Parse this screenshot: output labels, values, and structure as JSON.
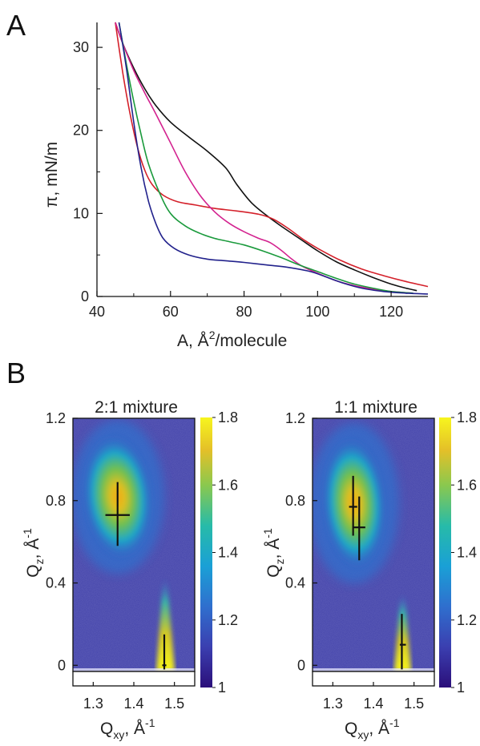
{
  "panels": {
    "a": "A",
    "b": "B"
  },
  "chart_data": [
    {
      "type": "line",
      "xlabel_main": "A, Å",
      "xlabel_sup": "2",
      "xlabel_tail": "/molecule",
      "ylabel": "π, mN/m",
      "xlim": [
        40,
        130
      ],
      "ylim": [
        0,
        33
      ],
      "xticks": [
        "40",
        "60",
        "80",
        "100",
        "120"
      ],
      "yticks": [
        "0",
        "10",
        "20",
        "30"
      ],
      "colors": [
        "#111111",
        "#d4202a",
        "#d3228f",
        "#1a9a3c",
        "#22228c"
      ],
      "series": [
        {
          "x": [
            45,
            47,
            50,
            53,
            56,
            60,
            65,
            70,
            75,
            78,
            82,
            86,
            90,
            95,
            100,
            105,
            110,
            115,
            120,
            124,
            127
          ],
          "y": [
            33,
            30.5,
            27.5,
            25,
            23,
            21,
            19.2,
            17.5,
            15.5,
            13.5,
            11.3,
            9.8,
            8.5,
            7,
            5.5,
            4.2,
            3.2,
            2.3,
            1.5,
            1,
            0.7
          ]
        },
        {
          "x": [
            45,
            47,
            49,
            51,
            53,
            55,
            58,
            62,
            67,
            72,
            78,
            84,
            88,
            92,
            96,
            100,
            106,
            112,
            118,
            124,
            130
          ],
          "y": [
            33,
            27,
            22,
            18,
            15.2,
            13.5,
            12.2,
            11.4,
            11,
            10.6,
            10.3,
            9.9,
            9.3,
            8.2,
            6.9,
            5.8,
            4.4,
            3.3,
            2.5,
            1.8,
            1.2
          ]
        },
        {
          "x": [
            45,
            47,
            50,
            53,
            56,
            60,
            64,
            68,
            72,
            76,
            80,
            84,
            87,
            90,
            93,
            96,
            100,
            105,
            110,
            115,
            120,
            126
          ],
          "y": [
            33,
            30.5,
            27.2,
            24.5,
            22,
            18.5,
            15,
            12.2,
            10.2,
            8.8,
            7.8,
            7,
            6.5,
            5.6,
            4.5,
            3.6,
            2.8,
            1.9,
            1.3,
            0.9,
            0.6,
            0.4
          ]
        },
        {
          "x": [
            46,
            48,
            50,
            52,
            54,
            57,
            60,
            64,
            68,
            72,
            76,
            80,
            85,
            90,
            95,
            100,
            105,
            110,
            115,
            120,
            126
          ],
          "y": [
            33,
            28,
            23.5,
            19.5,
            16,
            12.5,
            10,
            8.5,
            7.6,
            7,
            6.6,
            6.2,
            5.5,
            4.7,
            3.8,
            3,
            2.2,
            1.5,
            1,
            0.6,
            0.4
          ]
        },
        {
          "x": [
            46,
            48,
            50,
            52,
            54,
            56,
            58,
            61,
            65,
            70,
            75,
            80,
            86,
            92,
            98,
            102,
            107,
            112,
            118,
            124,
            130
          ],
          "y": [
            33,
            27.5,
            21,
            15.5,
            11.5,
            8.8,
            7,
            5.8,
            5,
            4.5,
            4.3,
            4.1,
            3.8,
            3.5,
            3,
            2.4,
            1.6,
            1,
            0.6,
            0.4,
            0.3
          ]
        }
      ]
    },
    {
      "type": "heatmap",
      "title": "2:1 mixture",
      "xlabel_main": "Q",
      "xlabel_sub": "xy",
      "xlabel_tail": ", Å",
      "xlabel_sup": "-1",
      "ylabel_main": "Q",
      "ylabel_sub": "z",
      "ylabel_tail": ", Å",
      "ylabel_sup": "-1",
      "xlim": [
        1.25,
        1.55
      ],
      "ylim": [
        -0.03,
        1.2
      ],
      "xticks": [
        "1.3",
        "1.4",
        "1.5"
      ],
      "yticks": [
        "0",
        "0.4",
        "0.8",
        "1.2"
      ],
      "colorbar_ticks": [
        "1",
        "1.2",
        "1.4",
        "1.6",
        "1.8"
      ],
      "colorbar_range": [
        1,
        1.8
      ],
      "peaks": [
        {
          "qxy": 1.36,
          "qz": 0.73,
          "err_qz": [
            0.58,
            0.89
          ],
          "err_qxy": [
            1.33,
            1.39
          ]
        },
        {
          "qxy": 1.475,
          "qz": 0.0,
          "err_qz": [
            -0.02,
            0.15
          ],
          "err_qxy": [
            1.47,
            1.48
          ]
        }
      ]
    },
    {
      "type": "heatmap",
      "title": "1:1 mixture",
      "xlabel_main": "Q",
      "xlabel_sub": "xy",
      "xlabel_tail": ", Å",
      "xlabel_sup": "-1",
      "ylabel_main": "Q",
      "ylabel_sub": "z",
      "ylabel_tail": ", Å",
      "ylabel_sup": "-1",
      "xlim": [
        1.25,
        1.55
      ],
      "ylim": [
        -0.03,
        1.2
      ],
      "xticks": [
        "1.3",
        "1.4",
        "1.5"
      ],
      "yticks": [
        "0",
        "0.4",
        "0.8",
        "1.2"
      ],
      "colorbar_ticks": [
        "1",
        "1.2",
        "1.4",
        "1.6",
        "1.8"
      ],
      "colorbar_range": [
        1,
        1.8
      ],
      "peaks": [
        {
          "qxy": 1.35,
          "qz": 0.77,
          "err_qz": [
            0.63,
            0.92
          ],
          "err_qxy": [
            1.34,
            1.36
          ]
        },
        {
          "qxy": 1.365,
          "qz": 0.67,
          "err_qz": [
            0.51,
            0.82
          ],
          "err_qxy": [
            1.35,
            1.38
          ]
        },
        {
          "qxy": 1.47,
          "qz": 0.1,
          "err_qz": [
            -0.02,
            0.25
          ],
          "err_qxy": [
            1.465,
            1.48
          ]
        }
      ]
    }
  ]
}
